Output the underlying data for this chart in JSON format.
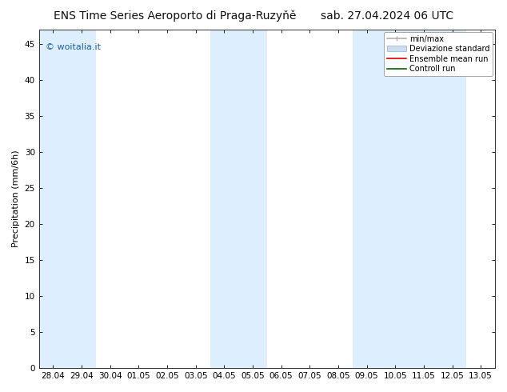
{
  "title_left": "ENS Time Series Aeroporto di Praga-Ruzyňě",
  "title_right": "sab. 27.04.2024 06 UTC",
  "ylabel": "Precipitation (mm/6h)",
  "watermark": "© woitalia.it",
  "watermark_color": "#1a5fa8",
  "background_color": "#ffffff",
  "plot_bg_color": "#ffffff",
  "ylim": [
    0,
    47
  ],
  "yticks": [
    0,
    5,
    10,
    15,
    20,
    25,
    30,
    35,
    40,
    45
  ],
  "xtick_labels": [
    "28.04",
    "29.04",
    "30.04",
    "01.05",
    "02.05",
    "03.05",
    "04.05",
    "05.05",
    "06.05",
    "07.05",
    "08.05",
    "09.05",
    "10.05",
    "11.05",
    "12.05",
    "13.05"
  ],
  "shaded_columns": [
    0,
    1,
    6,
    7,
    11,
    12,
    13,
    14
  ],
  "shade_color": "#ddeeff",
  "minmax_color": "#b0b0b0",
  "std_color": "#ccddf0",
  "std_edge_color": "#99bbdd",
  "ensemble_mean_color": "#dd0000",
  "control_run_color": "#006600",
  "legend_entries": [
    "min/max",
    "Deviazione standard",
    "Ensemble mean run",
    "Controll run"
  ],
  "font_size_title": 10,
  "font_size_axis": 8,
  "font_size_ticks": 7.5,
  "font_size_watermark": 8,
  "font_size_legend": 7
}
